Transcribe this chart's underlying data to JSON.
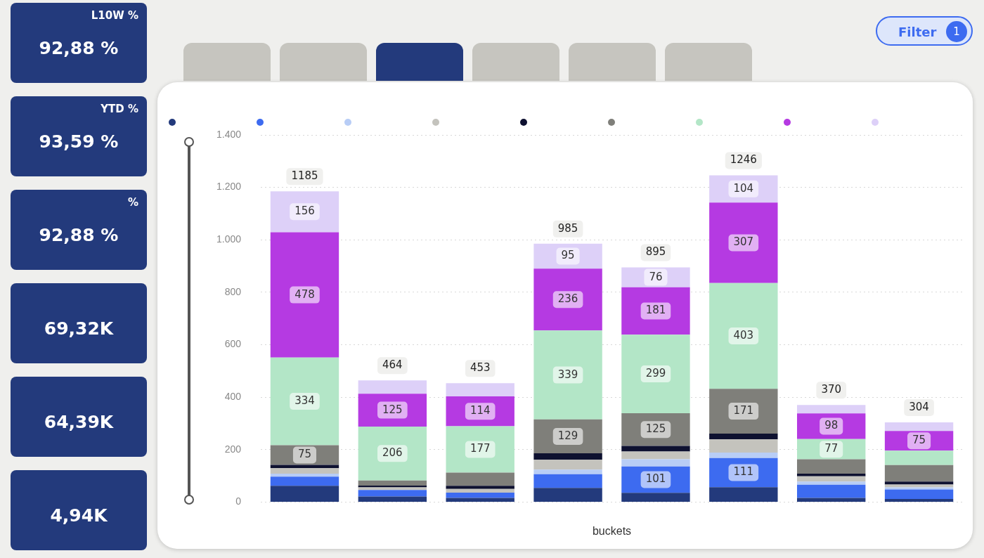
{
  "chart_data": [
    {
      "type": "other",
      "categories": [
        "L10W %",
        "YTD %",
        "%",
        null,
        null,
        null
      ],
      "value_labels": [
        "92,88 %",
        "93,59 %",
        "92,88 %",
        "69,32K",
        "64,39K",
        "4,94K"
      ]
    },
    {
      "type": "bar",
      "stacked": true,
      "xlabel": "buckets",
      "categories": [
        null,
        null,
        null,
        null,
        null,
        null,
        null,
        null
      ],
      "ylim": [
        0,
        1400
      ],
      "yticks": [
        0,
        200,
        400,
        600,
        800,
        {
          "value": 1000,
          "label": "1.000"
        },
        {
          "value": 1200,
          "label": "1.200"
        },
        {
          "value": 1400,
          "label": "1.400"
        }
      ],
      "grid": "y",
      "annotations": [
        "Filter",
        "1"
      ],
      "totals": [
        "1185",
        "464",
        "453",
        "985",
        "895",
        "1246",
        "370",
        "304"
      ],
      "series": [
        {
          "color": "#233a7c",
          "values": [
            62,
            21,
            16,
            54,
            35,
            57,
            16,
            12
          ]
        },
        {
          "color": "#3d6bf0",
          "values": [
            35,
            25,
            20,
            52,
            101,
            111,
            50,
            36
          ],
          "value_labels": [
            null,
            null,
            null,
            null,
            "101",
            "111",
            null,
            null
          ]
        },
        {
          "color": "#b8cdf6",
          "values": [
            11,
            null,
            null,
            18,
            27,
            21,
            12,
            8
          ]
        },
        {
          "color": "#c4c3bd",
          "values": [
            21,
            10,
            14,
            37,
            30,
            50,
            20,
            11
          ]
        },
        {
          "color": "#0e1130",
          "values": [
            13,
            7,
            12,
            25,
            21,
            22,
            10,
            11
          ]
        },
        {
          "color": "#7f7f7a",
          "values": [
            75,
            19,
            50,
            129,
            125,
            171,
            55,
            63
          ],
          "value_labels": [
            "75",
            null,
            null,
            "129",
            "125",
            "171",
            null,
            null
          ]
        },
        {
          "color": "#b3e6c7",
          "values": [
            334,
            206,
            177,
            339,
            299,
            403,
            77,
            55
          ],
          "value_labels": [
            "334",
            "206",
            "177",
            "339",
            "299",
            "403",
            "77",
            null
          ]
        },
        {
          "color": "#b53ae2",
          "values": [
            478,
            125,
            114,
            236,
            181,
            307,
            98,
            75
          ],
          "value_labels": [
            "478",
            "125",
            "114",
            "236",
            "181",
            "307",
            "98",
            "75"
          ]
        },
        {
          "color": "#ddd0f8",
          "values": [
            156,
            51,
            50,
            95,
            76,
            104,
            32,
            33
          ],
          "value_labels": [
            "156",
            null,
            null,
            "95",
            "76",
            "104",
            null,
            null
          ]
        }
      ]
    }
  ]
}
